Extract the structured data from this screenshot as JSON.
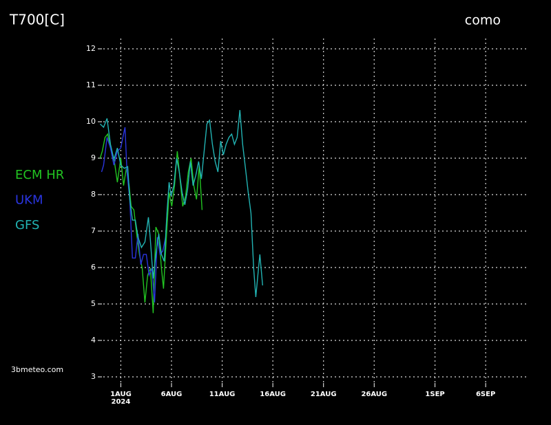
{
  "chart_data": {
    "type": "line",
    "title": "T700[C]",
    "location": "como",
    "source": "3bmeteo.com",
    "xticks": [
      {
        "value": 0,
        "label": "1AUG"
      },
      {
        "value": 5,
        "label": "6AUG"
      },
      {
        "value": 10,
        "label": "11AUG"
      },
      {
        "value": 15,
        "label": "16AUG"
      },
      {
        "value": 20,
        "label": "21AUG"
      },
      {
        "value": 25,
        "label": "26AUG"
      },
      {
        "value": 31,
        "label": "1SEP"
      },
      {
        "value": 36,
        "label": "6SEP"
      }
    ],
    "xtick_sublabel": "2024",
    "xlim": [
      -2,
      40
    ],
    "ylim": [
      3,
      12
    ],
    "yticks": [
      3,
      4,
      5,
      6,
      7,
      8,
      9,
      10,
      11,
      12
    ],
    "grid": true,
    "legend": "left",
    "series": [
      {
        "name": "ECM HR",
        "color": "#22c422",
        "x": [
          -2.04,
          -1.83,
          -1.56,
          -1.29,
          -1.02,
          -0.68,
          -0.34,
          0,
          0.27,
          0.54,
          0.82,
          1.02,
          1.29,
          1.56,
          1.83,
          2.11,
          2.38,
          2.65,
          2.92,
          3.19,
          3.46,
          3.74,
          4.01,
          4.21,
          4.48,
          4.76,
          5.03,
          5.3,
          5.57,
          5.84,
          6.11,
          6.39,
          6.66,
          6.93,
          7.2,
          7.47,
          7.74,
          8.02
        ],
        "values": [
          9.0,
          9.19,
          9.57,
          9.66,
          9.28,
          9.0,
          8.34,
          9.0,
          8.25,
          8.72,
          8.25,
          7.68,
          7.58,
          6.92,
          6.36,
          5.98,
          5.04,
          5.79,
          5.98,
          4.75,
          7.11,
          6.92,
          5.98,
          5.42,
          6.74,
          8.06,
          7.68,
          8.25,
          9.19,
          8.43,
          7.68,
          7.96,
          8.62,
          9.0,
          8.25,
          7.87,
          8.81,
          7.58
        ]
      },
      {
        "name": "UKM",
        "color": "#2a35e0",
        "x": [
          -1.9,
          -1.7,
          -1.36,
          -1.02,
          -0.68,
          -0.34,
          0,
          0.2,
          0.41,
          0.61,
          0.88,
          1.15,
          1.43,
          1.7,
          1.97,
          2.24,
          2.51,
          2.79,
          3.06,
          3.33,
          3.6,
          3.87,
          4.14,
          4.42
        ],
        "values": [
          8.62,
          8.81,
          9.57,
          9.28,
          8.81,
          9.19,
          9.28,
          9.57,
          9.85,
          8.62,
          7.87,
          6.26,
          6.26,
          6.92,
          6.08,
          6.36,
          6.36,
          5.79,
          5.98,
          5.04,
          6.83,
          6.36,
          6.45,
          6.83
        ]
      },
      {
        "name": "GFS",
        "color": "#22b4b4",
        "x": [
          -2.04,
          -1.7,
          -1.36,
          -1.02,
          -0.68,
          -0.34,
          0,
          0.34,
          0.68,
          0.88,
          1.15,
          1.43,
          1.7,
          2.04,
          2.38,
          2.72,
          2.92,
          3.19,
          3.46,
          3.74,
          4.01,
          4.28,
          4.55,
          4.76,
          4.96,
          5.23,
          5.5,
          5.77,
          6.05,
          6.32,
          6.59,
          6.86,
          7.13,
          7.4,
          7.68,
          7.95,
          8.22,
          8.49,
          8.76,
          9.04,
          9.31,
          9.58,
          9.85,
          10.12,
          10.39,
          10.67,
          10.94,
          11.21,
          11.48,
          11.75,
          12.02,
          12.3,
          12.57,
          12.84,
          13.11,
          13.32,
          13.52,
          13.72,
          13.99
        ],
        "values": [
          9.94,
          9.85,
          10.09,
          9.38,
          8.96,
          9.28,
          8.81,
          8.72,
          8.77,
          7.87,
          7.3,
          7.3,
          6.83,
          6.55,
          6.7,
          7.38,
          6.74,
          5.7,
          6.36,
          6.92,
          6.36,
          6.17,
          7.49,
          8.34,
          7.96,
          8.25,
          9.0,
          8.62,
          8.06,
          7.72,
          8.15,
          8.91,
          8.25,
          8.53,
          8.91,
          8.43,
          9.19,
          9.94,
          10.04,
          9.38,
          8.91,
          8.62,
          9.47,
          9.09,
          9.38,
          9.57,
          9.66,
          9.38,
          9.57,
          10.32,
          9.38,
          8.72,
          8.06,
          7.49,
          5.98,
          5.19,
          5.79,
          6.36,
          5.51
        ]
      }
    ]
  }
}
